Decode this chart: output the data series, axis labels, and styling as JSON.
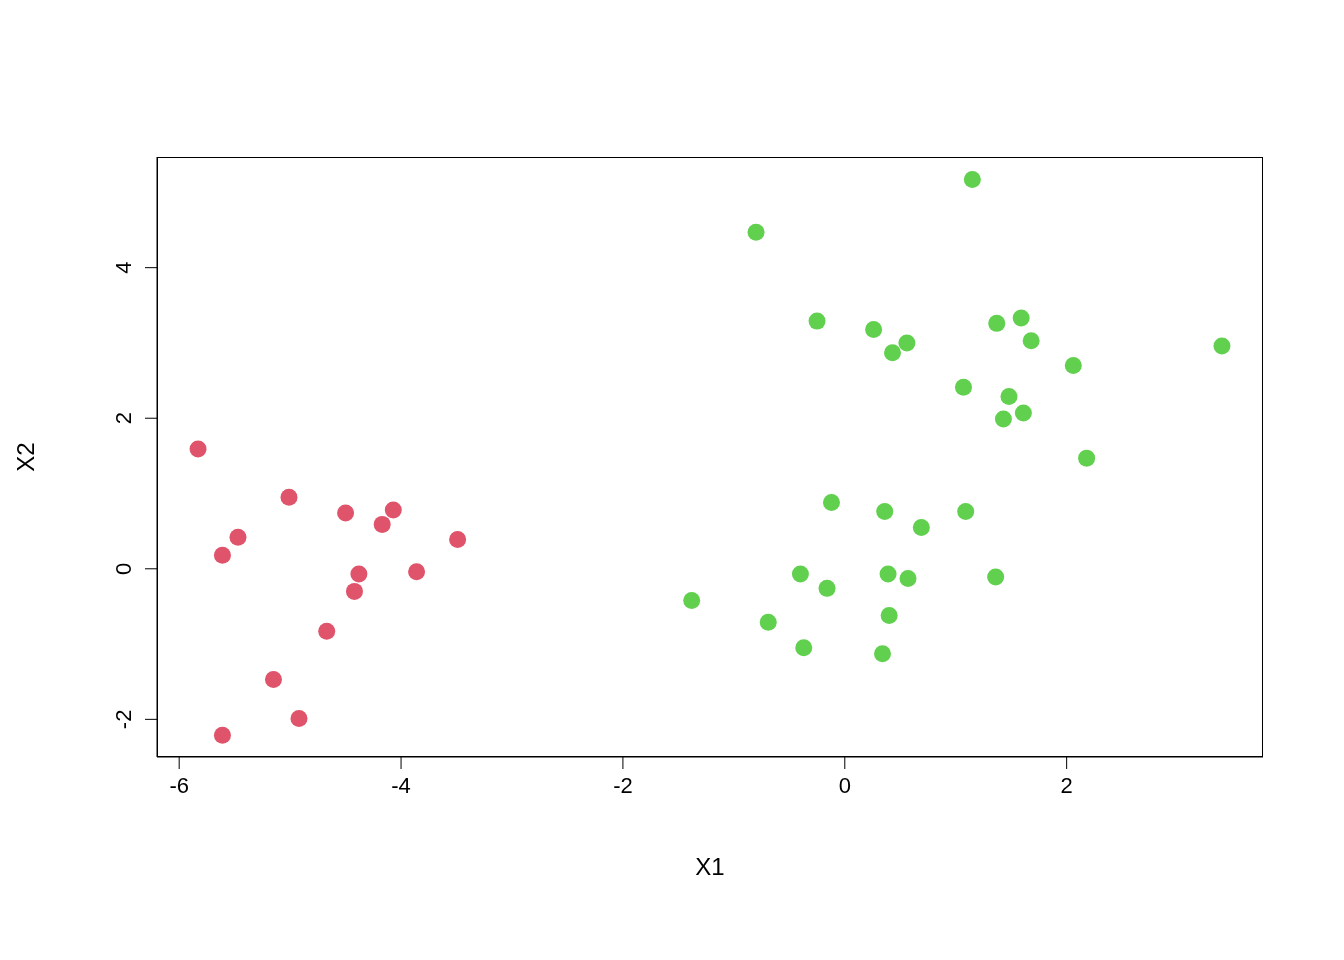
{
  "chart_data": {
    "type": "scatter",
    "xlabel": "X1",
    "ylabel": "X2",
    "xlim": [
      -6.2,
      3.77
    ],
    "ylim": [
      -2.5,
      5.47
    ],
    "xticks": [
      -6,
      -4,
      -2,
      0,
      2
    ],
    "yticks": [
      -2,
      0,
      2,
      4
    ],
    "grid": false,
    "legend": false,
    "marker": "circle",
    "series": [
      {
        "color": "#df536b",
        "x": [
          -5.83,
          -5.01,
          -5.47,
          -5.61,
          -4.5,
          -4.07,
          -4.17,
          -3.49,
          -4.38,
          -3.86,
          -4.42,
          -4.67,
          -5.15,
          -4.92,
          -5.61
        ],
        "values": [
          1.59,
          0.95,
          0.42,
          0.18,
          0.74,
          0.78,
          0.59,
          0.39,
          -0.07,
          -0.04,
          -0.3,
          -0.83,
          -1.47,
          -1.99,
          -2.21
        ]
      },
      {
        "color": "#61d04f",
        "x": [
          1.15,
          -0.8,
          -0.25,
          0.26,
          0.56,
          0.43,
          1.37,
          1.59,
          1.68,
          3.4,
          2.06,
          1.07,
          1.48,
          1.61,
          1.43,
          2.18,
          -0.12,
          0.36,
          1.09,
          0.69,
          -0.4,
          0.39,
          0.57,
          1.36,
          -0.16,
          -1.38,
          -0.69,
          0.4,
          -0.37,
          0.34
        ],
        "values": [
          5.17,
          4.47,
          3.29,
          3.18,
          3.0,
          2.87,
          3.26,
          3.33,
          3.03,
          2.96,
          2.7,
          2.41,
          2.29,
          2.07,
          1.99,
          1.47,
          0.88,
          0.76,
          0.76,
          0.55,
          -0.07,
          -0.07,
          -0.13,
          -0.11,
          -0.26,
          -0.42,
          -0.71,
          -0.62,
          -1.05,
          -1.13
        ]
      }
    ]
  }
}
